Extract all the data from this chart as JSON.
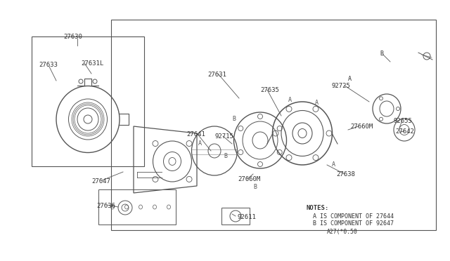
{
  "bg_color": "#ffffff",
  "line_color": "#555555",
  "text_color": "#333333",
  "notes": [
    "NOTES:",
    "A IS COMPONENT OF 27644",
    "B IS COMPONENT OF 92647",
    "A27(*0.50"
  ]
}
